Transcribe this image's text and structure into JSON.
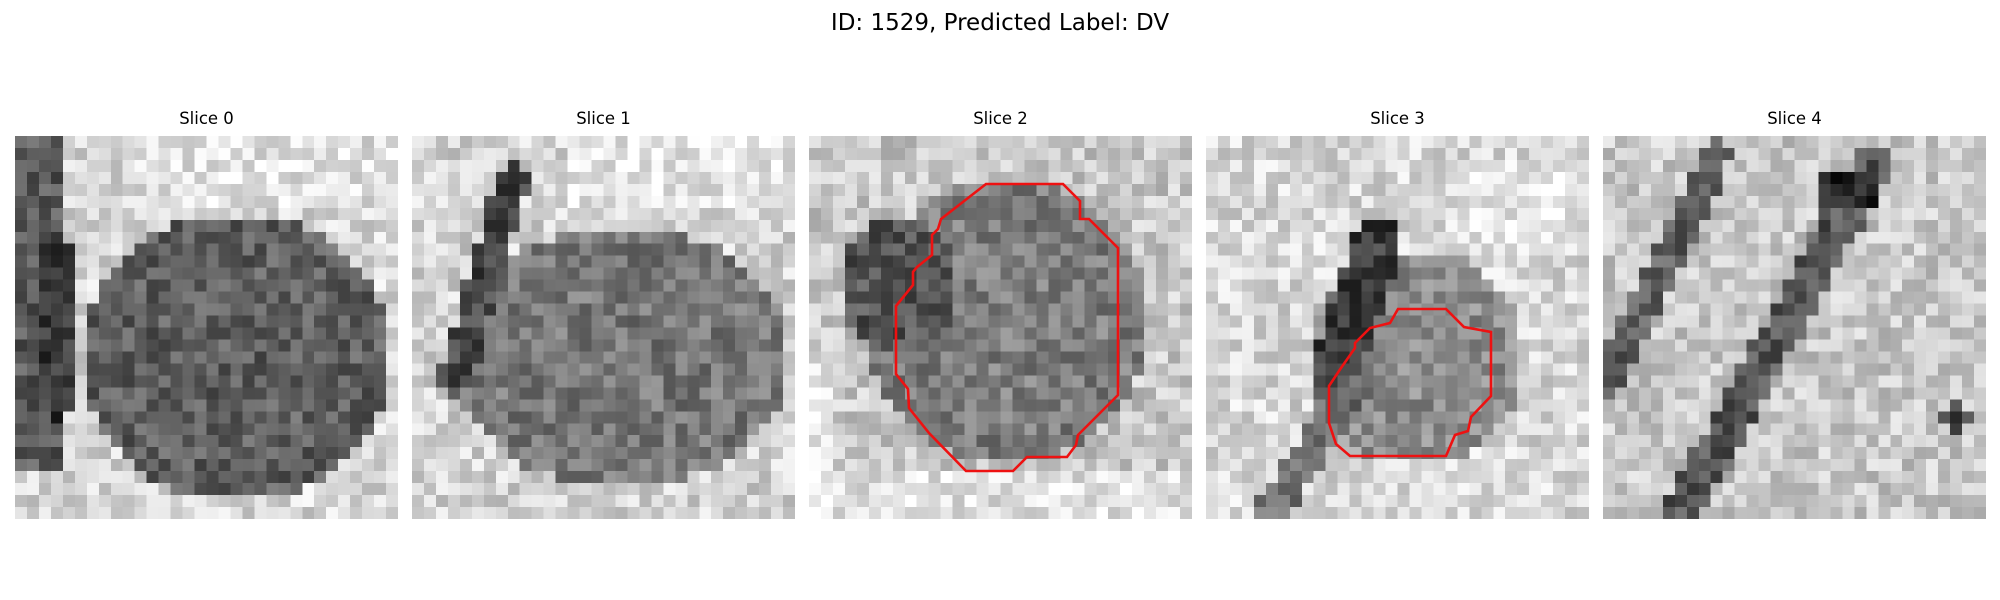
{
  "figure": {
    "title": "ID: 1529, Predicted Label: DV"
  },
  "colors": {
    "contour": "#ee1111"
  },
  "slices": [
    {
      "title": "Slice 0",
      "has_contour": false
    },
    {
      "title": "Slice 1",
      "has_contour": false
    },
    {
      "title": "Slice 2",
      "has_contour": true
    },
    {
      "title": "Slice 3",
      "has_contour": true
    },
    {
      "title": "Slice 4",
      "has_contour": false
    }
  ]
}
